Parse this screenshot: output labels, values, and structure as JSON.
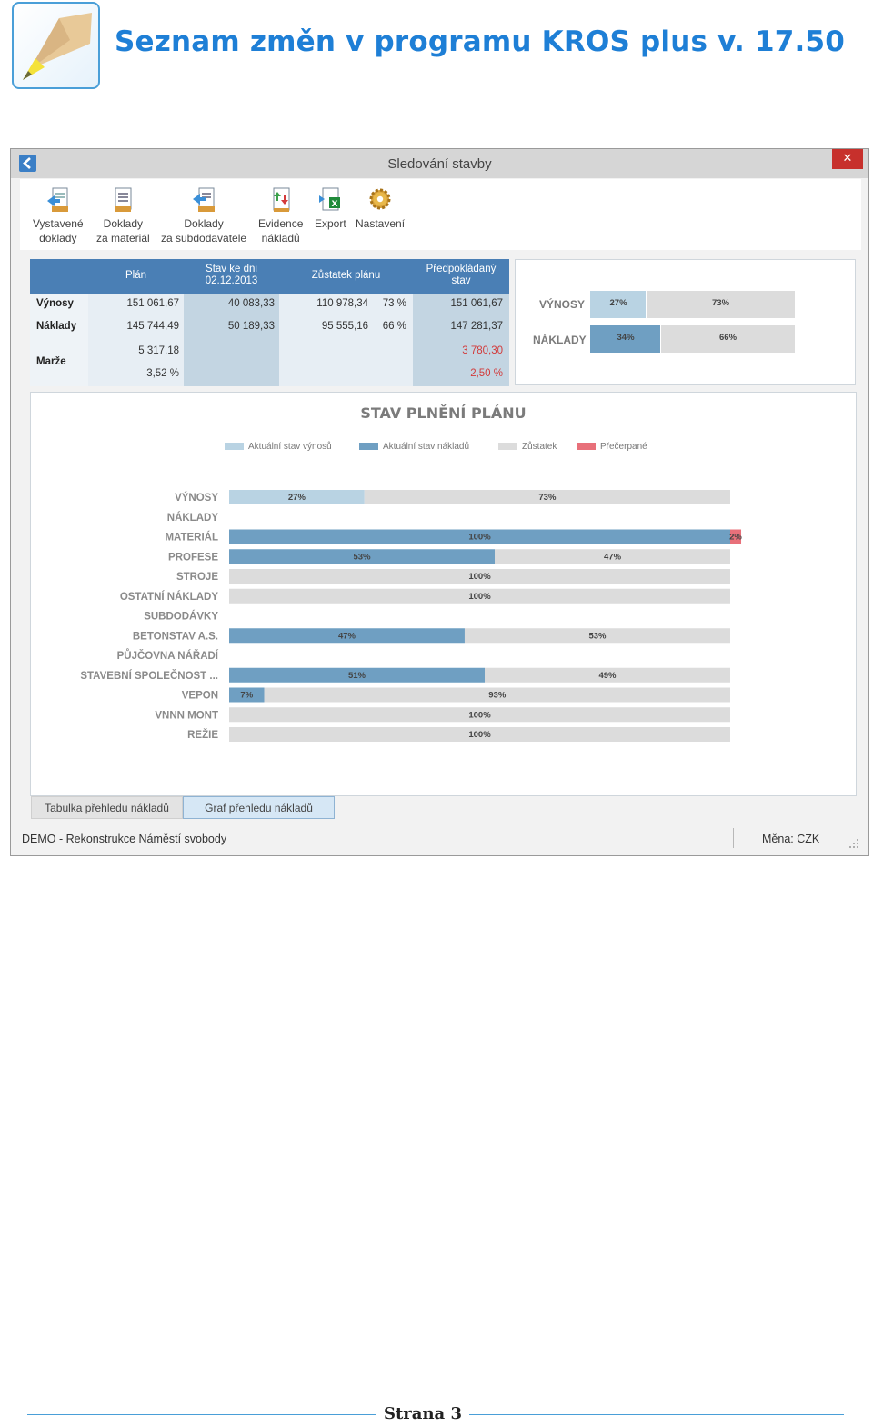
{
  "document": {
    "title": "Seznam změn v programu KROS plus v. 17.50",
    "footer": "Strana 3"
  },
  "window": {
    "title": "Sledování stavby",
    "close_label": "✕"
  },
  "toolbar": {
    "items": [
      {
        "line1": "Vystavené",
        "line2": "doklady",
        "icon": "issued-documents-icon"
      },
      {
        "line1": "Doklady",
        "line2": "za materiál",
        "icon": "material-documents-icon"
      },
      {
        "line1": "Doklady",
        "line2": "za subdodavatele",
        "icon": "subcontractor-documents-icon"
      },
      {
        "line1": "Evidence",
        "line2": "nákladů",
        "icon": "cost-records-icon"
      },
      {
        "line1": "Export",
        "line2": "",
        "icon": "excel-export-icon"
      },
      {
        "line1": "Nastavení",
        "line2": "",
        "icon": "gear-icon"
      }
    ]
  },
  "summary": {
    "headers": {
      "plan": "Plán",
      "state_line1": "Stav ke dni",
      "state_line2": "02.12.2013",
      "remaining": "Zůstatek plánu",
      "expected_line1": "Předpokládaný",
      "expected_line2": "stav"
    },
    "rows": {
      "revenue": {
        "label": "Výnosy",
        "plan": "151 061,67",
        "state": "40 083,33",
        "remaining": "110 978,34",
        "remaining_pct": "73 %",
        "expected": "151 061,67"
      },
      "costs": {
        "label": "Náklady",
        "plan": "145 744,49",
        "state": "50 189,33",
        "remaining": "95 555,16",
        "remaining_pct": "66 %",
        "expected": "147 281,37"
      },
      "margin": {
        "label": "Marže",
        "plan": "5 317,18",
        "plan_pct": "3,52 %",
        "expected": "3 780,30",
        "expected_pct": "2,50 %"
      }
    }
  },
  "overview": {
    "rows": [
      {
        "label": "VÝNOSY",
        "actual_pct": 27,
        "actual_label": "27%",
        "rest_label": "73%"
      },
      {
        "label": "NÁKLADY",
        "actual_pct": 34,
        "actual_label": "34%",
        "rest_label": "66%"
      }
    ]
  },
  "tabs": {
    "table": "Tabulka přehledu nákladů",
    "chart": "Graf přehledu nákladů"
  },
  "status": {
    "project": "DEMO - Rekonstrukce Náměstí svobody",
    "currency": "Měna: CZK"
  },
  "colors": {
    "revenue": "#b9d3e3",
    "costs": "#6f9fc2",
    "remaining": "#dcdcdc",
    "overspent": "#e8707a"
  },
  "chart_data": {
    "type": "bar",
    "title": "STAV PLNĚNÍ PLÁNU",
    "legend": [
      "Aktuální stav výnosů",
      "Aktuální stav nákladů",
      "Zůstatek",
      "Přečerpané"
    ],
    "categories": [
      "VÝNOSY",
      "NÁKLADY",
      "MATERIÁL",
      "PROFESE",
      "STROJE",
      "OSTATNÍ NÁKLADY",
      "SUBDODÁVKY",
      "BETONSTAV A.S.",
      "PŮJČOVNA NÁŘADÍ",
      "STAVEBNÍ SPOLEČNOST ...",
      "VEPON",
      "VNNN MONT",
      "REŽIE"
    ],
    "series": [
      {
        "name": "Aktuální stav výnosů",
        "values": [
          27,
          null,
          null,
          null,
          null,
          null,
          null,
          null,
          null,
          null,
          null,
          null,
          null
        ]
      },
      {
        "name": "Aktuální stav nákladů",
        "values": [
          null,
          null,
          100,
          53,
          0,
          0,
          null,
          47,
          null,
          51,
          7,
          0,
          0
        ]
      },
      {
        "name": "Zůstatek",
        "values": [
          73,
          null,
          null,
          47,
          100,
          100,
          null,
          53,
          null,
          49,
          93,
          100,
          100
        ]
      },
      {
        "name": "Přečerpané",
        "values": [
          null,
          null,
          2,
          null,
          null,
          null,
          null,
          null,
          null,
          null,
          null,
          null,
          null
        ]
      }
    ],
    "labels": [
      [
        "27%",
        "73%",
        null
      ],
      [
        null,
        null,
        null
      ],
      [
        "100%",
        null,
        "2%"
      ],
      [
        "53%",
        "47%",
        null
      ],
      [
        null,
        "100%",
        null
      ],
      [
        null,
        "100%",
        null
      ],
      [
        null,
        null,
        null
      ],
      [
        "47%",
        "53%",
        null
      ],
      [
        null,
        null,
        null
      ],
      [
        "51%",
        "49%",
        null
      ],
      [
        "7%",
        "93%",
        null
      ],
      [
        null,
        "100%",
        null
      ],
      [
        null,
        "100%",
        null
      ]
    ],
    "xlim": [
      0,
      100
    ],
    "grid": false,
    "legend_position": "top"
  }
}
